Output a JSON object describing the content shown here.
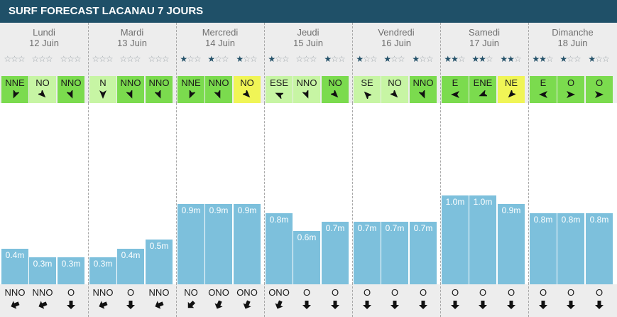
{
  "header": {
    "title": "SURF FORECAST LACANAU 7 JOURS"
  },
  "colors": {
    "title_bg": "#1f5068",
    "wind_bright_green": "#7bdb4e",
    "wind_pale_green": "#c7f5a4",
    "wind_yellow": "#f0f556",
    "bar": "#7dc0dc",
    "star_on": "#245169",
    "star_off": "#9aa3a8"
  },
  "days": [
    {
      "name": "Lundi",
      "date": "12 Juin",
      "slots": [
        {
          "stars": 0,
          "wind": "NNE",
          "wind_deg": 203,
          "wind_color": "wind_bright_green",
          "height": "0.4m",
          "height_m": 0.4,
          "swell": "NNO",
          "swell_deg": 158
        },
        {
          "stars": 0,
          "wind": "NO",
          "wind_deg": 135,
          "wind_color": "wind_pale_green",
          "height": "0.3m",
          "height_m": 0.3,
          "swell": "NNO",
          "swell_deg": 158
        },
        {
          "stars": 0,
          "wind": "NNO",
          "wind_deg": 158,
          "wind_color": "wind_bright_green",
          "height": "0.3m",
          "height_m": 0.3,
          "swell": "O",
          "swell_deg": 90
        }
      ]
    },
    {
      "name": "Mardi",
      "date": "13 Juin",
      "slots": [
        {
          "stars": 0,
          "wind": "N",
          "wind_deg": 180,
          "wind_color": "wind_pale_green",
          "height": "0.3m",
          "height_m": 0.3,
          "swell": "NNO",
          "swell_deg": 158
        },
        {
          "stars": 0,
          "wind": "NNO",
          "wind_deg": 158,
          "wind_color": "wind_bright_green",
          "height": "0.4m",
          "height_m": 0.4,
          "swell": "O",
          "swell_deg": 90
        },
        {
          "stars": 0,
          "wind": "NNO",
          "wind_deg": 158,
          "wind_color": "wind_bright_green",
          "height": "0.5m",
          "height_m": 0.5,
          "swell": "NNO",
          "swell_deg": 158
        }
      ]
    },
    {
      "name": "Mercredi",
      "date": "14 Juin",
      "slots": [
        {
          "stars": 1,
          "wind": "NNE",
          "wind_deg": 203,
          "wind_color": "wind_bright_green",
          "height": "0.9m",
          "height_m": 0.9,
          "swell": "NO",
          "swell_deg": 135
        },
        {
          "stars": 1,
          "wind": "NNO",
          "wind_deg": 158,
          "wind_color": "wind_bright_green",
          "height": "0.9m",
          "height_m": 0.9,
          "swell": "ONO",
          "swell_deg": 113
        },
        {
          "stars": 1,
          "wind": "NO",
          "wind_deg": 135,
          "wind_color": "wind_yellow",
          "height": "0.9m",
          "height_m": 0.9,
          "swell": "ONO",
          "swell_deg": 113
        }
      ]
    },
    {
      "name": "Jeudi",
      "date": "15 Juin",
      "slots": [
        {
          "stars": 1,
          "wind": "ESE",
          "wind_deg": 293,
          "wind_color": "wind_pale_green",
          "height": "0.8m",
          "height_m": 0.8,
          "swell": "ONO",
          "swell_deg": 113
        },
        {
          "stars": 0,
          "wind": "NNO",
          "wind_deg": 158,
          "wind_color": "wind_pale_green",
          "height": "0.6m",
          "height_m": 0.6,
          "swell": "O",
          "swell_deg": 90
        },
        {
          "stars": 1,
          "wind": "NO",
          "wind_deg": 135,
          "wind_color": "wind_bright_green",
          "height": "0.7m",
          "height_m": 0.7,
          "swell": "O",
          "swell_deg": 90
        }
      ]
    },
    {
      "name": "Vendredi",
      "date": "16 Juin",
      "slots": [
        {
          "stars": 1,
          "wind": "SE",
          "wind_deg": 315,
          "wind_color": "wind_pale_green",
          "height": "0.7m",
          "height_m": 0.7,
          "swell": "O",
          "swell_deg": 90
        },
        {
          "stars": 1,
          "wind": "NO",
          "wind_deg": 135,
          "wind_color": "wind_pale_green",
          "height": "0.7m",
          "height_m": 0.7,
          "swell": "O",
          "swell_deg": 90
        },
        {
          "stars": 1,
          "wind": "NNO",
          "wind_deg": 158,
          "wind_color": "wind_bright_green",
          "height": "0.7m",
          "height_m": 0.7,
          "swell": "O",
          "swell_deg": 90
        }
      ]
    },
    {
      "name": "Samedi",
      "date": "17 Juin",
      "slots": [
        {
          "stars": 2,
          "wind": "E",
          "wind_deg": 270,
          "wind_color": "wind_bright_green",
          "height": "1.0m",
          "height_m": 1.0,
          "swell": "O",
          "swell_deg": 90
        },
        {
          "stars": 2,
          "wind": "ENE",
          "wind_deg": 248,
          "wind_color": "wind_bright_green",
          "height": "1.0m",
          "height_m": 1.0,
          "swell": "O",
          "swell_deg": 90
        },
        {
          "stars": 2,
          "wind": "NE",
          "wind_deg": 225,
          "wind_color": "wind_yellow",
          "height": "0.9m",
          "height_m": 0.9,
          "swell": "O",
          "swell_deg": 90
        }
      ]
    },
    {
      "name": "Dimanche",
      "date": "18 Juin",
      "slots": [
        {
          "stars": 2,
          "wind": "E",
          "wind_deg": 270,
          "wind_color": "wind_bright_green",
          "height": "0.8m",
          "height_m": 0.8,
          "swell": "O",
          "swell_deg": 90
        },
        {
          "stars": 1,
          "wind": "O",
          "wind_deg": 90,
          "wind_color": "wind_bright_green",
          "height": "0.8m",
          "height_m": 0.8,
          "swell": "O",
          "swell_deg": 90
        },
        {
          "stars": 1,
          "wind": "O",
          "wind_deg": 90,
          "wind_color": "wind_bright_green",
          "height": "0.8m",
          "height_m": 0.8,
          "swell": "O",
          "swell_deg": 90
        }
      ]
    }
  ]
}
